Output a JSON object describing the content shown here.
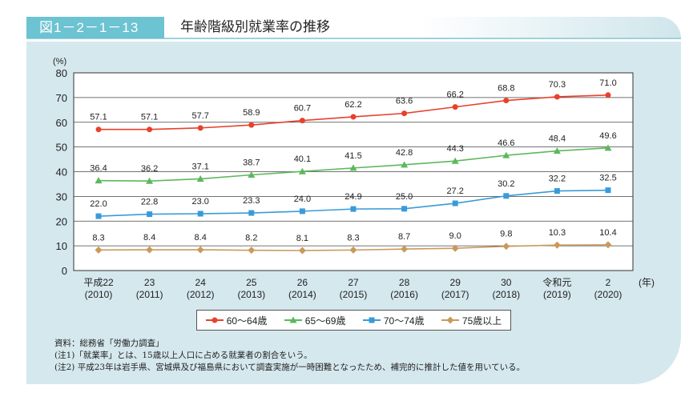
{
  "header": {
    "figure_number": "図1－2－1－13",
    "title": "年齢階級別就業率の推移"
  },
  "chart_data": {
    "type": "line",
    "ylabel": "(%)",
    "xlabel": "(年)",
    "ylim": [
      0,
      80
    ],
    "yticks": [
      0,
      10,
      20,
      30,
      40,
      50,
      60,
      70,
      80
    ],
    "grid": true,
    "legend": "bottom",
    "categories": [
      {
        "era": "平成22",
        "year": "(2010)"
      },
      {
        "era": "23",
        "year": "(2011)"
      },
      {
        "era": "24",
        "year": "(2012)"
      },
      {
        "era": "25",
        "year": "(2013)"
      },
      {
        "era": "26",
        "year": "(2014)"
      },
      {
        "era": "27",
        "year": "(2015)"
      },
      {
        "era": "28",
        "year": "(2016)"
      },
      {
        "era": "29",
        "year": "(2017)"
      },
      {
        "era": "30",
        "year": "(2018)"
      },
      {
        "era": "令和元",
        "year": "(2019)"
      },
      {
        "era": "2",
        "year": "(2020)"
      }
    ],
    "series": [
      {
        "name": "60～64歳",
        "color": "#e8412c",
        "marker": "circle",
        "values": [
          57.1,
          57.1,
          57.7,
          58.9,
          60.7,
          62.2,
          63.6,
          66.2,
          68.8,
          70.3,
          71.0
        ]
      },
      {
        "name": "65～69歳",
        "color": "#5cb85c",
        "marker": "triangle",
        "values": [
          36.4,
          36.2,
          37.1,
          38.7,
          40.1,
          41.5,
          42.8,
          44.3,
          46.6,
          48.4,
          49.6
        ]
      },
      {
        "name": "70～74歳",
        "color": "#3a9ad9",
        "marker": "square",
        "values": [
          22.0,
          22.8,
          23.0,
          23.3,
          24.0,
          24.9,
          25.0,
          27.2,
          30.2,
          32.2,
          32.5
        ]
      },
      {
        "name": "75歳以上",
        "color": "#c99a5b",
        "marker": "diamond",
        "values": [
          8.3,
          8.4,
          8.4,
          8.2,
          8.1,
          8.3,
          8.7,
          9.0,
          9.8,
          10.3,
          10.4
        ]
      }
    ]
  },
  "notes": [
    "資料：総務省「労働力調査」",
    "(注1)「就業率」とは、15歳以上人口に占める就業者の割合をいう。",
    "(注2) 平成23年は岩手県、宮城県及び福島県において調査実施が一時困難となったため、補完的に推計した値を用いている。"
  ]
}
